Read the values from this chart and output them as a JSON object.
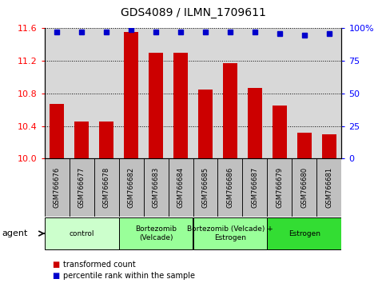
{
  "title": "GDS4089 / ILMN_1709611",
  "samples": [
    "GSM766676",
    "GSM766677",
    "GSM766678",
    "GSM766682",
    "GSM766683",
    "GSM766684",
    "GSM766685",
    "GSM766686",
    "GSM766687",
    "GSM766679",
    "GSM766680",
    "GSM766681"
  ],
  "bar_values": [
    10.67,
    10.45,
    10.45,
    11.55,
    11.3,
    11.3,
    10.85,
    11.17,
    10.87,
    10.65,
    10.32,
    10.3
  ],
  "percentile_values": [
    97,
    97,
    97,
    99,
    97,
    97,
    97,
    97,
    97,
    96,
    95,
    96
  ],
  "bar_color": "#cc0000",
  "percentile_color": "#0000cc",
  "ylim_left": [
    10.0,
    11.6
  ],
  "ylim_right": [
    0,
    100
  ],
  "yticks_left": [
    10.0,
    10.4,
    10.8,
    11.2,
    11.6
  ],
  "yticks_right": [
    0,
    25,
    50,
    75,
    100
  ],
  "groups": [
    {
      "label": "control",
      "start": 0,
      "end": 3,
      "color": "#ccffcc"
    },
    {
      "label": "Bortezomib\n(Velcade)",
      "start": 3,
      "end": 6,
      "color": "#99ff99"
    },
    {
      "label": "Bortezomib (Velcade) +\nEstrogen",
      "start": 6,
      "end": 9,
      "color": "#99ff99"
    },
    {
      "label": "Estrogen",
      "start": 9,
      "end": 12,
      "color": "#33dd33"
    }
  ],
  "legend_bar_label": "transformed count",
  "legend_pct_label": "percentile rank within the sample",
  "agent_label": "agent",
  "background_color": "#ffffff",
  "plot_bg_color": "#d8d8d8",
  "xtick_bg_color": "#c0c0c0"
}
